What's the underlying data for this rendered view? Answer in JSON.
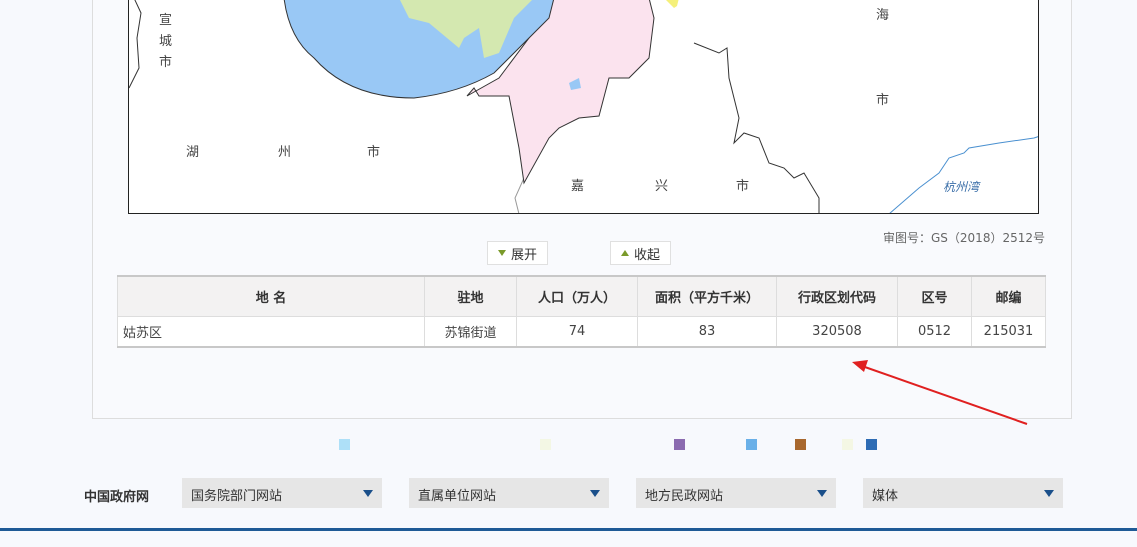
{
  "map": {
    "labels": {
      "xuancheng": [
        "宣",
        "城",
        "市"
      ],
      "huzhou": [
        "湖",
        "州",
        "市"
      ],
      "jiaxing": [
        "嘉",
        "兴",
        "市"
      ],
      "shanghai": [
        "海",
        "市"
      ],
      "hangzhouwan": "杭州湾"
    },
    "approval_number": "审图号：GS（2018）2512号",
    "colors": {
      "lake": "#99c8f5",
      "land_green": "#d4e8b0",
      "district_pink": "#fbe3ee",
      "yellow": "#f5f07a",
      "water_line": "#4a90d0"
    }
  },
  "controls": {
    "expand_label": "展开",
    "collapse_label": "收起"
  },
  "table": {
    "headers": [
      "地 名",
      "驻地",
      "人口（万人）",
      "面积（平方千米）",
      "行政区划代码",
      "区号",
      "邮编"
    ],
    "rows": [
      [
        "姑苏区",
        "苏锦街道",
        "74",
        "83",
        "320508",
        "0512",
        "215031"
      ]
    ]
  },
  "legend_colors": [
    "#aee0f8",
    "#f3f7e4",
    "#8b6bb0",
    "#6ab0e8",
    "#a8682e",
    "#f4f7e4",
    "#2e6cb4"
  ],
  "footer": {
    "label": "中国政府网",
    "selects": [
      "国务院部门网站",
      "直属单位网站",
      "地方民政网站",
      "媒体"
    ]
  },
  "annotation": {
    "arrow_color": "#e02020"
  }
}
